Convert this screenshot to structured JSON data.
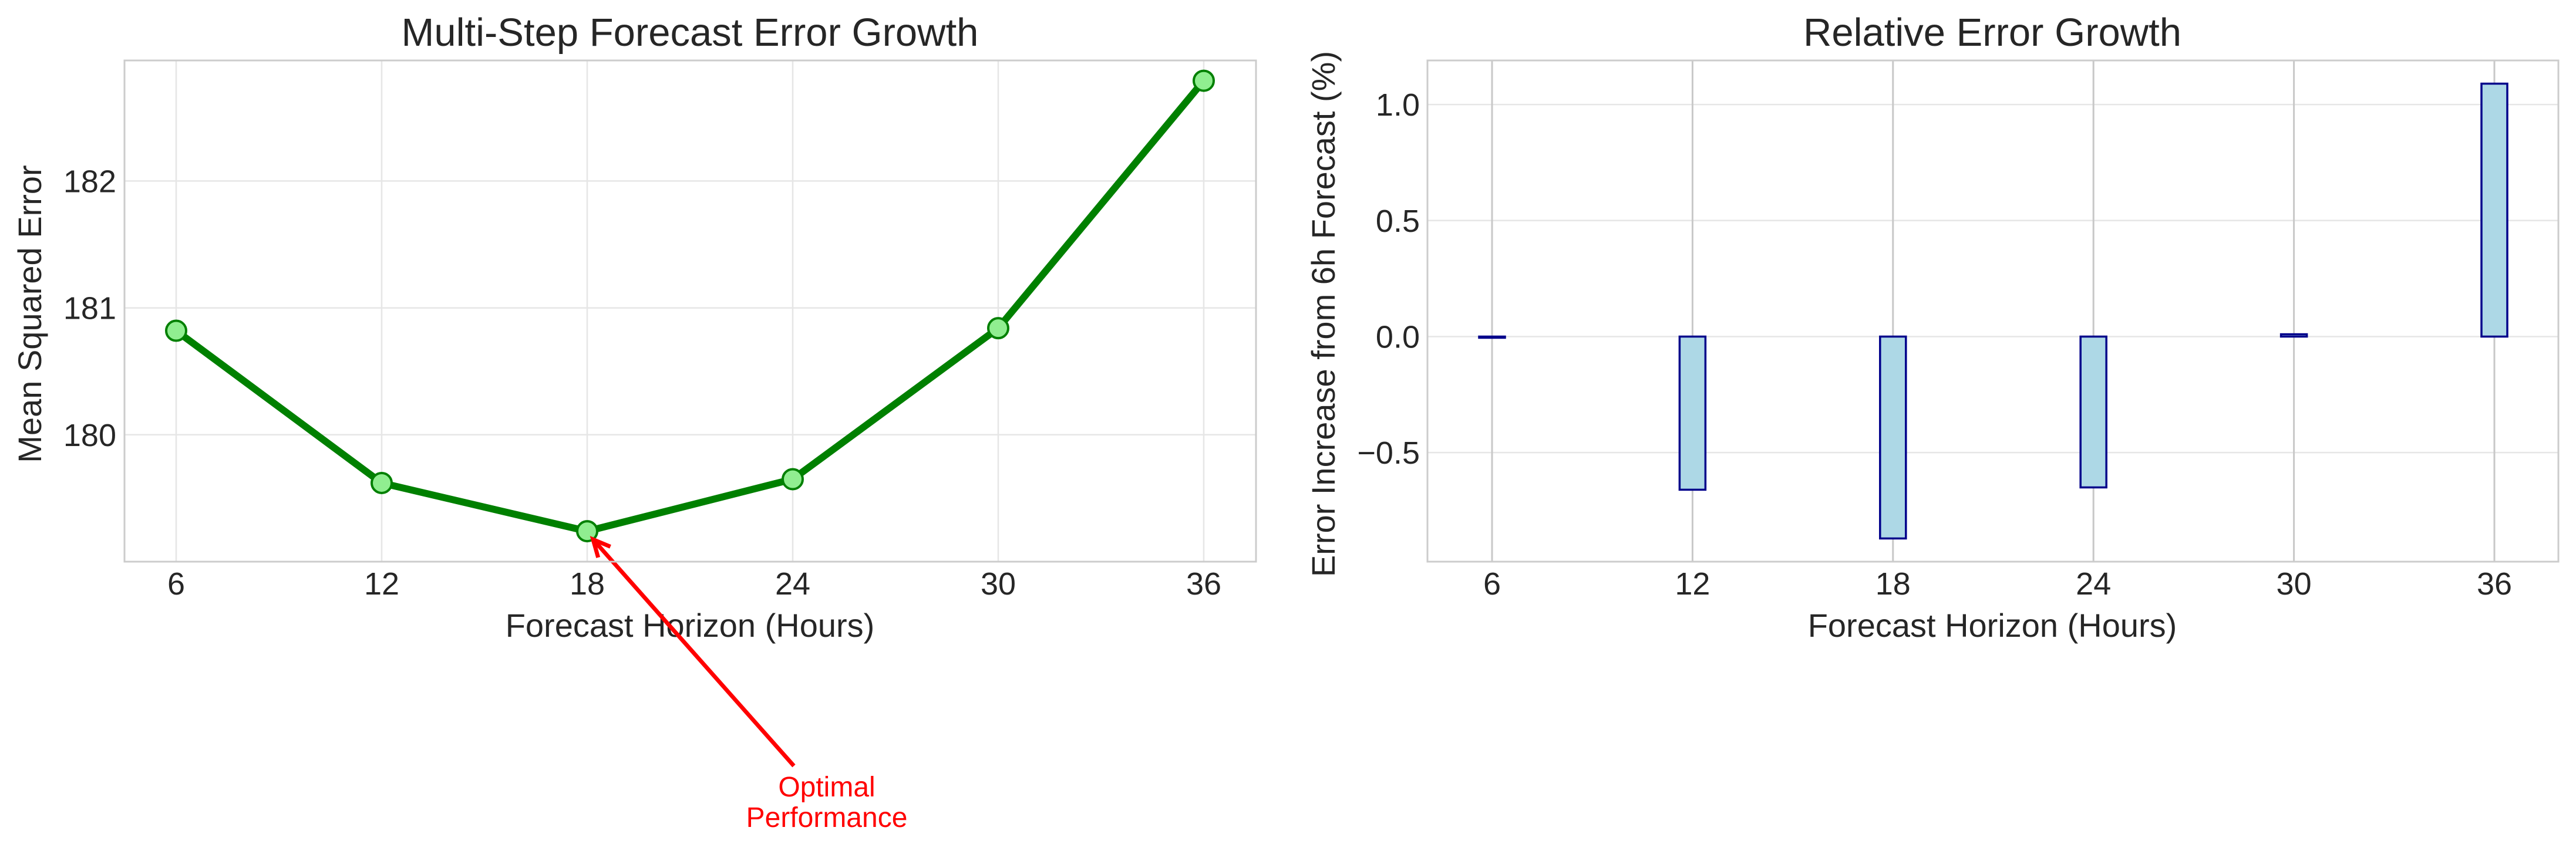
{
  "chart_data": [
    {
      "type": "line",
      "title": "Multi-Step Forecast Error Growth",
      "xlabel": "Forecast Horizon (Hours)",
      "ylabel": "Mean Squared Error",
      "x": [
        6,
        12,
        18,
        24,
        30,
        36
      ],
      "x_tick_labels": [
        "6",
        "12",
        "18",
        "24",
        "30",
        "36"
      ],
      "y": [
        180.82,
        179.62,
        179.24,
        179.65,
        180.84,
        182.79
      ],
      "ylim": [
        179.0,
        182.95
      ],
      "y_ticks": [
        180,
        181,
        182
      ],
      "grid": true,
      "line_color": "#008000",
      "marker_color": "#90ee90",
      "annotation": {
        "text_line1": "Optimal",
        "text_line2": "Performance",
        "x": 18,
        "y": 179.24,
        "color": "#ff0000"
      }
    },
    {
      "type": "bar",
      "title": "Relative Error Growth",
      "xlabel": "Forecast Horizon (Hours)",
      "ylabel": "Error Increase from 6h Forecast (%)",
      "categories": [
        "6",
        "12",
        "18",
        "24",
        "30",
        "36"
      ],
      "values": [
        0.0,
        -0.66,
        -0.87,
        -0.65,
        0.01,
        1.09
      ],
      "ylim": [
        -0.97,
        1.19
      ],
      "y_ticks": [
        -0.5,
        0.0,
        0.5,
        1.0
      ],
      "y_tick_labels": [
        "−0.5",
        "0.0",
        "0.5",
        "1.0"
      ],
      "grid": true,
      "bar_color": "#add8e6",
      "bar_edge_color": "#00008b"
    }
  ]
}
